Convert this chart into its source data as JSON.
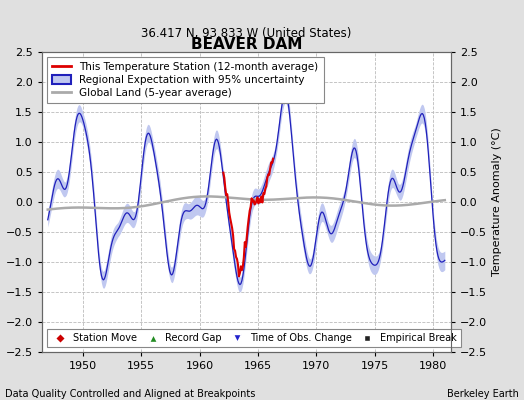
{
  "title": "BEAVER DAM",
  "subtitle": "36.417 N, 93.833 W (United States)",
  "xlabel_left": "Data Quality Controlled and Aligned at Breakpoints",
  "xlabel_right": "Berkeley Earth",
  "ylabel": "Temperature Anomaly (°C)",
  "xlim": [
    1946.5,
    1981.5
  ],
  "ylim": [
    -2.5,
    2.5
  ],
  "yticks": [
    -2.5,
    -2,
    -1.5,
    -1,
    -0.5,
    0,
    0.5,
    1,
    1.5,
    2,
    2.5
  ],
  "xticks": [
    1950,
    1955,
    1960,
    1965,
    1970,
    1975,
    1980
  ],
  "background_color": "#e0e0e0",
  "plot_bg_color": "#ffffff",
  "grid_color": "#bbbbbb",
  "line_regional_color": "#2020bb",
  "line_regional_uncertainty_color": "#c0c8f0",
  "line_station_color": "#dd0000",
  "line_global_color": "#aaaaaa",
  "legend_station": "This Temperature Station (12-month average)",
  "legend_regional": "Regional Expectation with 95% uncertainty",
  "legend_global": "Global Land (5-year average)"
}
